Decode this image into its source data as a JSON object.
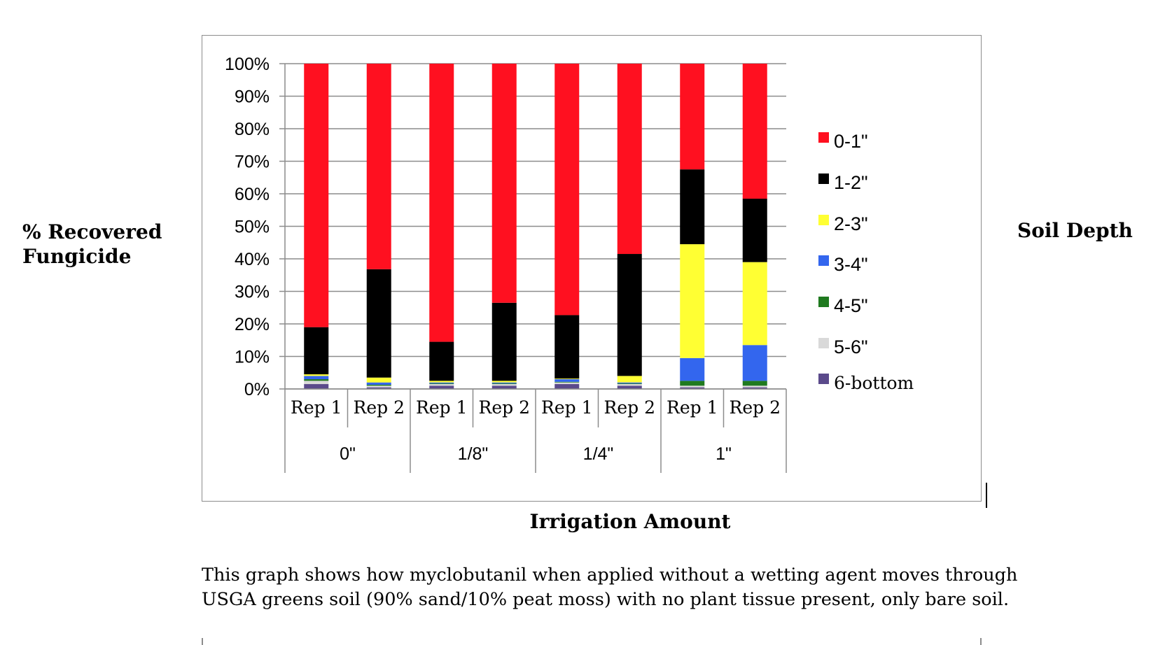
{
  "chart_data": {
    "type": "bar",
    "stacked": true,
    "normalized_percent": true,
    "ylabel": "% Recovered Fungicide",
    "xlabel": "Irrigation Amount",
    "legend_title": "Soil Depth",
    "legend_position": "right",
    "ylim": [
      0,
      100
    ],
    "yticks": [
      "0%",
      "10%",
      "20%",
      "30%",
      "40%",
      "50%",
      "60%",
      "70%",
      "80%",
      "90%",
      "100%"
    ],
    "grid": true,
    "groups": [
      {
        "label": "0\"",
        "categories": [
          "Rep 1",
          "Rep 2"
        ]
      },
      {
        "label": "1/8\"",
        "categories": [
          "Rep 1",
          "Rep 2"
        ]
      },
      {
        "label": "1/4\"",
        "categories": [
          "Rep 1",
          "Rep 2"
        ]
      },
      {
        "label": "1\"",
        "categories": [
          "Rep 1",
          "Rep 2"
        ]
      }
    ],
    "categories": [
      "Rep 1",
      "Rep 2",
      "Rep 1",
      "Rep 2",
      "Rep 1",
      "Rep 2",
      "Rep 1",
      "Rep 2"
    ],
    "series": [
      {
        "name": "6-bottom",
        "color": "#5b4a8b",
        "values": [
          1.5,
          0.5,
          1.0,
          1.0,
          1.5,
          1.0,
          0.5,
          0.5
        ]
      },
      {
        "name": "5-6\"",
        "color": "#d9d9d9",
        "values": [
          1.0,
          0.5,
          0.5,
          0.5,
          0.5,
          0.5,
          0.5,
          0.5
        ]
      },
      {
        "name": "4-5\"",
        "color": "#1f7a1f",
        "values": [
          0.5,
          0.3,
          0.2,
          0.2,
          0.2,
          0.2,
          1.5,
          1.5
        ]
      },
      {
        "name": "3-4\"",
        "color": "#3366ee",
        "values": [
          1.0,
          0.7,
          0.3,
          0.3,
          0.8,
          0.3,
          7.0,
          11.0
        ]
      },
      {
        "name": "2-3\"",
        "color": "#ffff33",
        "values": [
          0.5,
          1.5,
          0.5,
          0.5,
          0.2,
          2.0,
          35.0,
          25.5
        ]
      },
      {
        "name": "1-2\"",
        "color": "#000000",
        "values": [
          14.5,
          33.3,
          12.0,
          24.0,
          19.5,
          37.5,
          23.0,
          19.5
        ]
      },
      {
        "name": "0-1\"",
        "color": "#ff1020",
        "values": [
          81.0,
          63.2,
          85.5,
          73.5,
          77.3,
          58.5,
          32.5,
          41.5
        ]
      }
    ],
    "legend_order": [
      "0-1\"",
      "1-2\"",
      "2-3\"",
      "3-4\"",
      "4-5\"",
      "5-6\"",
      "6-bottom"
    ]
  },
  "caption": {
    "line1": "This graph shows how myclobutanil when applied without a wetting agent moves through",
    "line2": "USGA greens soil (90% sand/10% peat moss) with no plant tissue present, only bare soil."
  }
}
